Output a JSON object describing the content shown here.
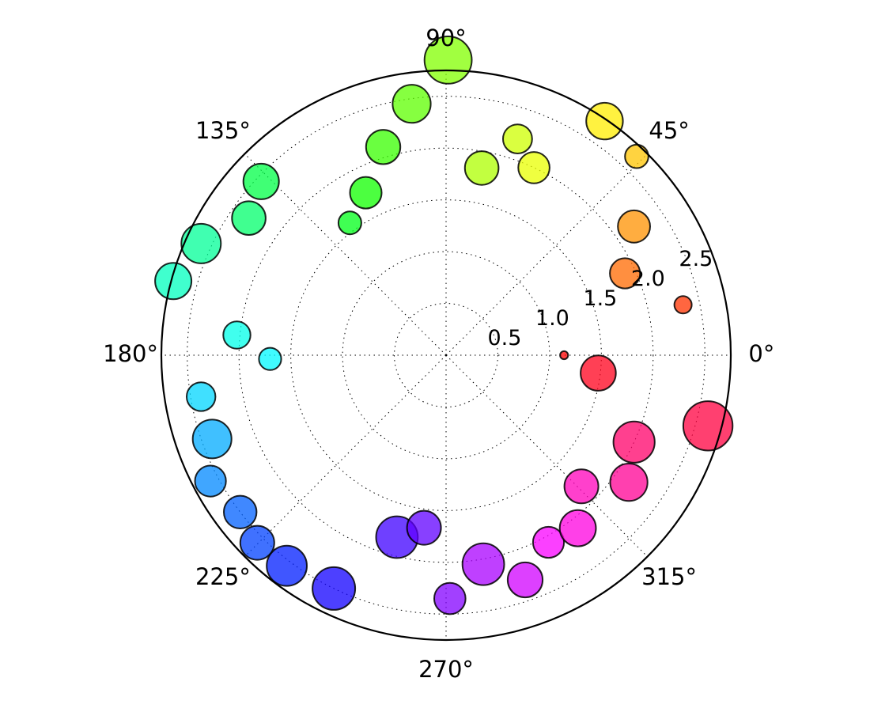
{
  "chart_data": {
    "type": "scatter",
    "projection": "polar",
    "title": "",
    "theta_unit": "degrees",
    "theta_tick_labels": [
      "0°",
      "45°",
      "90°",
      "135°",
      "180°",
      "225°",
      "270°",
      "315°"
    ],
    "r_tick_values": [
      0.5,
      1.0,
      1.5,
      2.0,
      2.5
    ],
    "r_tick_labels": [
      "0.5",
      "1.0",
      "1.5",
      "2.0",
      "2.5"
    ],
    "rlim": [
      0,
      2.75
    ],
    "grid": true,
    "grid_style": "dotted",
    "marker_alpha": 0.75,
    "marker_edge_color": "#000000",
    "color_map": "hsv, hue from theta",
    "points": [
      {
        "theta": 0.0,
        "r": 1.14,
        "area": 3
      },
      {
        "theta": 12.0,
        "r": 2.34,
        "area": 14
      },
      {
        "theta": 24.6,
        "r": 1.9,
        "area": 42
      },
      {
        "theta": 34.4,
        "r": 2.2,
        "area": 48
      },
      {
        "theta": 46.2,
        "r": 2.66,
        "area": 25
      },
      {
        "theta": 55.9,
        "r": 2.73,
        "area": 62
      },
      {
        "theta": 64.9,
        "r": 2.0,
        "area": 45
      },
      {
        "theta": 71.7,
        "r": 2.2,
        "area": 39
      },
      {
        "theta": 79.2,
        "r": 1.84,
        "area": 52
      },
      {
        "theta": 89.6,
        "r": 2.85,
        "area": 103
      },
      {
        "theta": 97.8,
        "r": 2.45,
        "area": 67
      },
      {
        "theta": 106.8,
        "r": 2.1,
        "area": 54
      },
      {
        "theta": 116.3,
        "r": 1.75,
        "area": 46
      },
      {
        "theta": 126.0,
        "r": 1.58,
        "area": 24
      },
      {
        "theta": 136.8,
        "r": 2.45,
        "area": 58
      },
      {
        "theta": 145.2,
        "r": 2.32,
        "area": 52
      },
      {
        "theta": 155.5,
        "r": 2.6,
        "area": 72
      },
      {
        "theta": 164.8,
        "r": 2.73,
        "area": 61
      },
      {
        "theta": 174.5,
        "r": 2.03,
        "area": 34
      },
      {
        "theta": 181.2,
        "r": 1.7,
        "area": 23
      },
      {
        "theta": 189.6,
        "r": 2.4,
        "area": 38
      },
      {
        "theta": 199.7,
        "r": 2.4,
        "area": 69
      },
      {
        "theta": 208.1,
        "r": 2.58,
        "area": 44
      },
      {
        "theta": 217.3,
        "r": 2.5,
        "area": 49
      },
      {
        "theta": 224.8,
        "r": 2.57,
        "area": 53
      },
      {
        "theta": 232.9,
        "r": 2.55,
        "area": 74
      },
      {
        "theta": 244.3,
        "r": 2.5,
        "area": 84
      },
      {
        "theta": 254.9,
        "r": 1.82,
        "area": 80
      },
      {
        "theta": 262.7,
        "r": 1.68,
        "area": 53
      },
      {
        "theta": 270.9,
        "r": 2.35,
        "area": 45
      },
      {
        "theta": 280.1,
        "r": 2.05,
        "area": 80
      },
      {
        "theta": 289.4,
        "r": 2.3,
        "area": 56
      },
      {
        "theta": 298.7,
        "r": 2.06,
        "area": 44
      },
      {
        "theta": 307.3,
        "r": 2.1,
        "area": 60
      },
      {
        "theta": 315.9,
        "r": 1.82,
        "area": 53
      },
      {
        "theta": 325.2,
        "r": 2.15,
        "area": 64
      },
      {
        "theta": 335.2,
        "r": 2.0,
        "area": 78
      },
      {
        "theta": 344.9,
        "r": 2.62,
        "area": 112
      },
      {
        "theta": 353.3,
        "r": 1.48,
        "area": 57
      }
    ]
  }
}
